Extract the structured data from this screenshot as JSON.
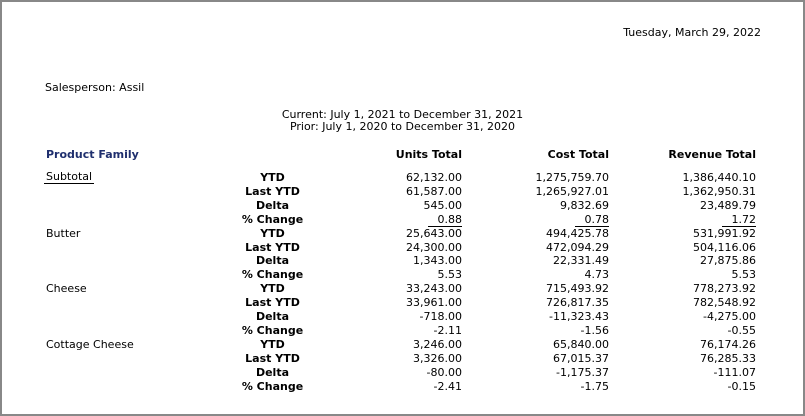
{
  "report": {
    "date": "Tuesday, March 29, 2022",
    "salesperson": "Salesperson: Assil",
    "current_period": "Current: July 1, 2021 to December 31, 2021",
    "prior_period": "Prior: July 1, 2020 to December 31, 2020"
  },
  "table": {
    "headers": {
      "family": "Product Family",
      "units": "Units Total",
      "cost": "Cost Total",
      "revenue": "Revenue Total"
    },
    "metrics": [
      "YTD",
      "Last YTD",
      "Delta",
      "% Change"
    ],
    "groups": [
      {
        "name": "Subtotal",
        "rows": [
          {
            "metric": "YTD",
            "units": "62,132.00",
            "cost": "1,275,759.70",
            "revenue": "1,386,440.10"
          },
          {
            "metric": "Last YTD",
            "units": "61,587.00",
            "cost": "1,265,927.01",
            "revenue": "1,362,950.31"
          },
          {
            "metric": "Delta",
            "units": "545.00",
            "cost": "9,832.69",
            "revenue": "23,489.79"
          },
          {
            "metric": "% Change",
            "units": "0.88",
            "cost": "0.78",
            "revenue": "1.72"
          }
        ]
      },
      {
        "name": "Butter",
        "rows": [
          {
            "metric": "YTD",
            "units": "25,643.00",
            "cost": "494,425.78",
            "revenue": "531,991.92"
          },
          {
            "metric": "Last YTD",
            "units": "24,300.00",
            "cost": "472,094.29",
            "revenue": "504,116.06"
          },
          {
            "metric": "Delta",
            "units": "1,343.00",
            "cost": "22,331.49",
            "revenue": "27,875.86"
          },
          {
            "metric": "% Change",
            "units": "5.53",
            "cost": "4.73",
            "revenue": "5.53"
          }
        ]
      },
      {
        "name": "Cheese",
        "rows": [
          {
            "metric": "YTD",
            "units": "33,243.00",
            "cost": "715,493.92",
            "revenue": "778,273.92"
          },
          {
            "metric": "Last YTD",
            "units": "33,961.00",
            "cost": "726,817.35",
            "revenue": "782,548.92"
          },
          {
            "metric": "Delta",
            "units": "-718.00",
            "cost": "-11,323.43",
            "revenue": "-4,275.00"
          },
          {
            "metric": "% Change",
            "units": "-2.11",
            "cost": "-1.56",
            "revenue": "-0.55"
          }
        ]
      },
      {
        "name": "Cottage Cheese",
        "rows": [
          {
            "metric": "YTD",
            "units": "3,246.00",
            "cost": "65,840.00",
            "revenue": "76,174.26"
          },
          {
            "metric": "Last YTD",
            "units": "3,326.00",
            "cost": "67,015.37",
            "revenue": "76,285.33"
          },
          {
            "metric": "Delta",
            "units": "-80.00",
            "cost": "-1,175.37",
            "revenue": "-111.07"
          },
          {
            "metric": "% Change",
            "units": "-2.41",
            "cost": "-1.75",
            "revenue": "-0.15"
          }
        ]
      }
    ]
  }
}
